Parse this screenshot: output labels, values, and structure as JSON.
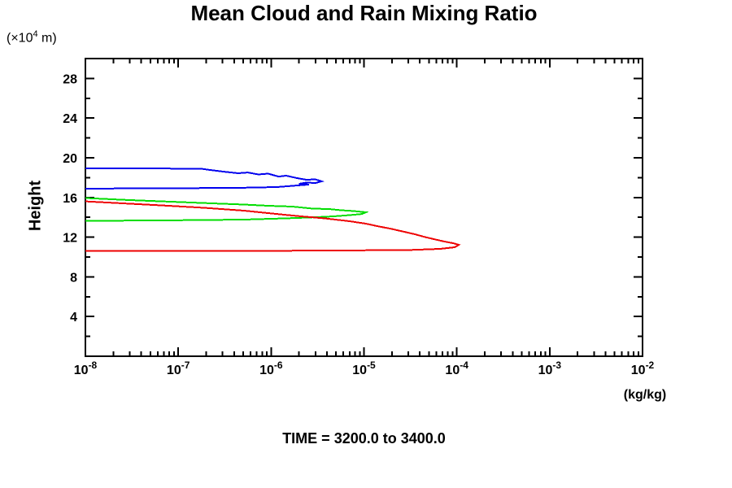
{
  "chart_data": {
    "type": "line",
    "title": "Mean Cloud and Rain Mixing Ratio",
    "footer": "TIME = 3200.0 to 3400.0",
    "xlabel": "(kg/kg)",
    "ylabel": "Height",
    "ylabel_unit": {
      "pre": "(×10",
      "sup": "4",
      "post": " m)"
    },
    "xscale": "log",
    "x_exponent_range": [
      -8,
      -2
    ],
    "ylim": [
      0,
      30
    ],
    "y_major_ticks": [
      4,
      8,
      12,
      16,
      20,
      24,
      28
    ],
    "y_minor_ticks": [
      2,
      6,
      10,
      14,
      18,
      22,
      26,
      30
    ],
    "grid": false,
    "legend": "none",
    "axis_color": "#000000",
    "series": [
      {
        "name": "blue-profile",
        "color": "#0000ee",
        "points": [
          [
            1e-08,
            18.93
          ],
          [
            3.7e-08,
            18.93
          ],
          [
            1.75e-07,
            18.9
          ],
          [
            2.2e-07,
            18.77
          ],
          [
            3.1e-07,
            18.6
          ],
          [
            4.4e-07,
            18.44
          ],
          [
            5.6e-07,
            18.52
          ],
          [
            7.3e-07,
            18.32
          ],
          [
            9.3e-07,
            18.4
          ],
          [
            1.2e-06,
            18.11
          ],
          [
            1.45e-06,
            18.2
          ],
          [
            1.9e-06,
            17.95
          ],
          [
            2.4e-06,
            17.79
          ],
          [
            3e-06,
            17.83
          ],
          [
            3.5e-06,
            17.62
          ],
          [
            3e-06,
            17.46
          ],
          [
            2.4e-06,
            17.5
          ],
          [
            2e-06,
            17.38
          ],
          [
            2.55e-06,
            17.3
          ],
          [
            1.7e-06,
            17.17
          ],
          [
            1.15e-06,
            17.05
          ],
          [
            4.2e-07,
            16.97
          ],
          [
            6.8e-08,
            16.93
          ],
          [
            1e-08,
            16.89
          ]
        ]
      },
      {
        "name": "green-profile",
        "color": "#00dd00",
        "points": [
          [
            1e-08,
            15.94
          ],
          [
            3e-08,
            15.74
          ],
          [
            8.3e-08,
            15.57
          ],
          [
            2.3e-07,
            15.41
          ],
          [
            5.1e-07,
            15.29
          ],
          [
            9.3e-07,
            15.16
          ],
          [
            1.7e-06,
            15.08
          ],
          [
            2.8e-06,
            14.88
          ],
          [
            4.2e-06,
            14.84
          ],
          [
            5.7e-06,
            14.71
          ],
          [
            7.8e-06,
            14.63
          ],
          [
            1.05e-05,
            14.51
          ],
          [
            9.5e-06,
            14.34
          ],
          [
            7e-06,
            14.22
          ],
          [
            4.7e-06,
            14.1
          ],
          [
            2.6e-06,
            13.98
          ],
          [
            1.4e-06,
            13.89
          ],
          [
            5.1e-07,
            13.77
          ],
          [
            6.8e-08,
            13.69
          ],
          [
            1e-08,
            13.65
          ]
        ]
      },
      {
        "name": "red-profile",
        "color": "#ee0000",
        "points": [
          [
            1e-08,
            15.61
          ],
          [
            2.5e-08,
            15.41
          ],
          [
            6.8e-08,
            15.2
          ],
          [
            1.9e-07,
            14.96
          ],
          [
            5.1e-07,
            14.67
          ],
          [
            1.15e-06,
            14.34
          ],
          [
            2.1e-06,
            14.1
          ],
          [
            3.8e-06,
            13.89
          ],
          [
            7e-06,
            13.61
          ],
          [
            1.05e-05,
            13.36
          ],
          [
            1.4e-05,
            13.11
          ],
          [
            1.9e-05,
            12.87
          ],
          [
            2.6e-05,
            12.58
          ],
          [
            3.5e-05,
            12.3
          ],
          [
            4.6e-05,
            12.0
          ],
          [
            5.9e-05,
            11.76
          ],
          [
            7.4e-05,
            11.56
          ],
          [
            9.1e-05,
            11.39
          ],
          [
            0.000105,
            11.23
          ],
          [
            9.5e-05,
            10.98
          ],
          [
            6.6e-05,
            10.82
          ],
          [
            2.9e-05,
            10.7
          ],
          [
            5.7e-06,
            10.66
          ],
          [
            5.1e-07,
            10.61
          ],
          [
            1e-08,
            10.61
          ]
        ]
      }
    ]
  }
}
